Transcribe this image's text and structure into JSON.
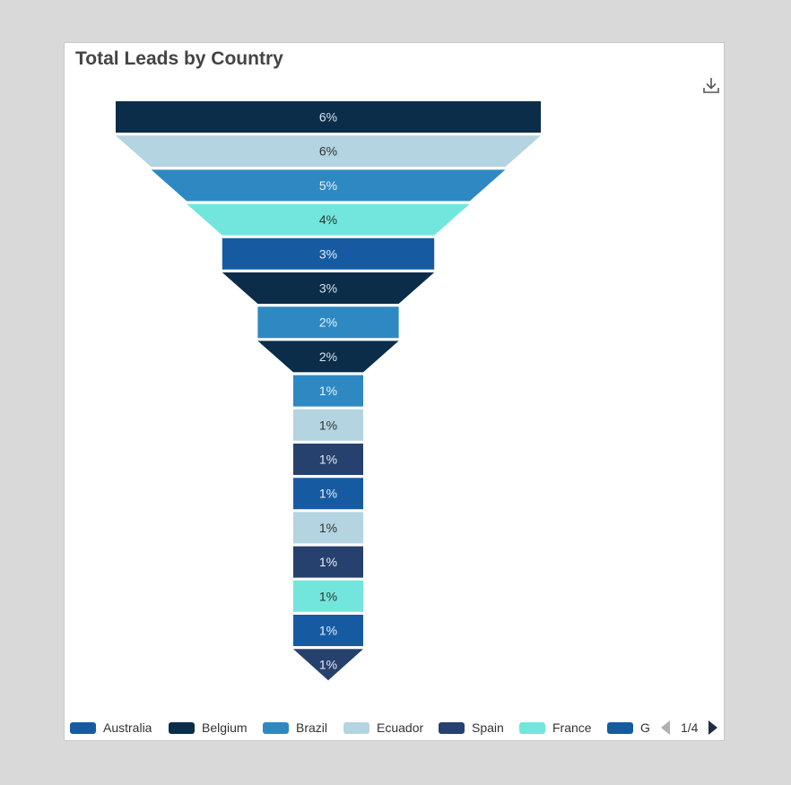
{
  "chart_data": {
    "type": "funnel",
    "title": "Total Leads by Country",
    "segments": [
      {
        "label": "6%",
        "value": 6,
        "color": "#0b2d49",
        "text_color": "#d6e2ea"
      },
      {
        "label": "6%",
        "value": 6,
        "color": "#b3d4e0",
        "text_color": "#333333"
      },
      {
        "label": "5%",
        "value": 5,
        "color": "#2e89c3",
        "text_color": "#e9f2f8"
      },
      {
        "label": "4%",
        "value": 4,
        "color": "#72e6dc",
        "text_color": "#333333"
      },
      {
        "label": "3%",
        "value": 3,
        "color": "#165ba2",
        "text_color": "#e6eef6"
      },
      {
        "label": "3%",
        "value": 3,
        "color": "#0b2d49",
        "text_color": "#d6e2ea"
      },
      {
        "label": "2%",
        "value": 2,
        "color": "#2e89c3",
        "text_color": "#e9f2f8"
      },
      {
        "label": "2%",
        "value": 2,
        "color": "#0b2d49",
        "text_color": "#d6e2ea"
      },
      {
        "label": "1%",
        "value": 1,
        "color": "#2e89c3",
        "text_color": "#e9f2f8"
      },
      {
        "label": "1%",
        "value": 1,
        "color": "#b3d4e0",
        "text_color": "#333333"
      },
      {
        "label": "1%",
        "value": 1,
        "color": "#27416e",
        "text_color": "#e6eaf2"
      },
      {
        "label": "1%",
        "value": 1,
        "color": "#165ba2",
        "text_color": "#e6eef6"
      },
      {
        "label": "1%",
        "value": 1,
        "color": "#b3d4e0",
        "text_color": "#333333"
      },
      {
        "label": "1%",
        "value": 1,
        "color": "#27416e",
        "text_color": "#e6eaf2"
      },
      {
        "label": "1%",
        "value": 1,
        "color": "#72e6dc",
        "text_color": "#333333"
      },
      {
        "label": "1%",
        "value": 1,
        "color": "#165ba2",
        "text_color": "#e6eef6"
      },
      {
        "label": "1%",
        "value": 1,
        "color": "#27416e",
        "text_color": "#e6eaf2"
      }
    ],
    "legend": {
      "placement": "bottom",
      "items": [
        {
          "name": "Australia",
          "color": "#165ba2"
        },
        {
          "name": "Belgium",
          "color": "#0b2d49"
        },
        {
          "name": "Brazil",
          "color": "#2e89c3"
        },
        {
          "name": "Ecuador",
          "color": "#b3d4e0"
        },
        {
          "name": "Spain",
          "color": "#27416e"
        },
        {
          "name": "France",
          "color": "#72e6dc"
        },
        {
          "name": "G",
          "color": "#165ba2"
        }
      ],
      "page": "1/4"
    }
  },
  "icons": {
    "download": "download-icon",
    "prev": "pager-prev-icon",
    "next": "pager-next-icon"
  }
}
